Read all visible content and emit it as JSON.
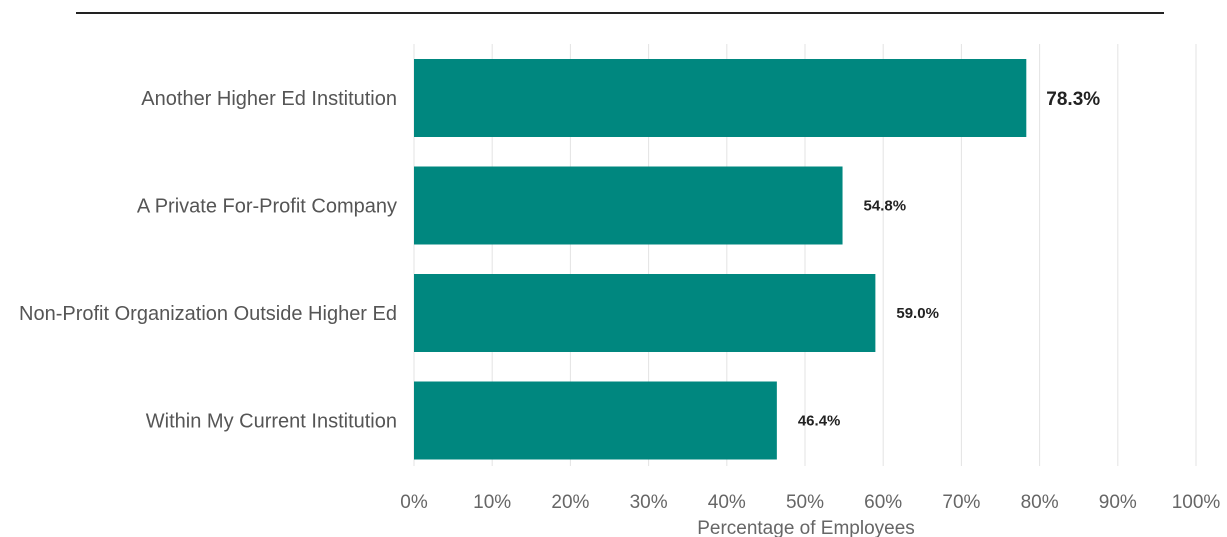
{
  "chart_data": {
    "type": "bar",
    "orientation": "horizontal",
    "categories": [
      "Another Higher Ed Institution",
      "A Private For-Profit Company",
      "Non-Profit Organization Outside Higher Ed",
      "Within My Current Institution"
    ],
    "values": [
      78.3,
      54.8,
      59.0,
      46.4
    ],
    "data_labels": [
      "78.3%",
      "54.8%",
      "59.0%",
      "46.4%"
    ],
    "xlabel": "Percentage of Employees",
    "ylabel": "",
    "xlim": [
      0,
      100
    ],
    "x_ticks": [
      "0%",
      "10%",
      "20%",
      "30%",
      "40%",
      "50%",
      "60%",
      "70%",
      "80%",
      "90%",
      "100%"
    ],
    "bar_color": "#00877f",
    "grid": true,
    "legend": "none"
  }
}
